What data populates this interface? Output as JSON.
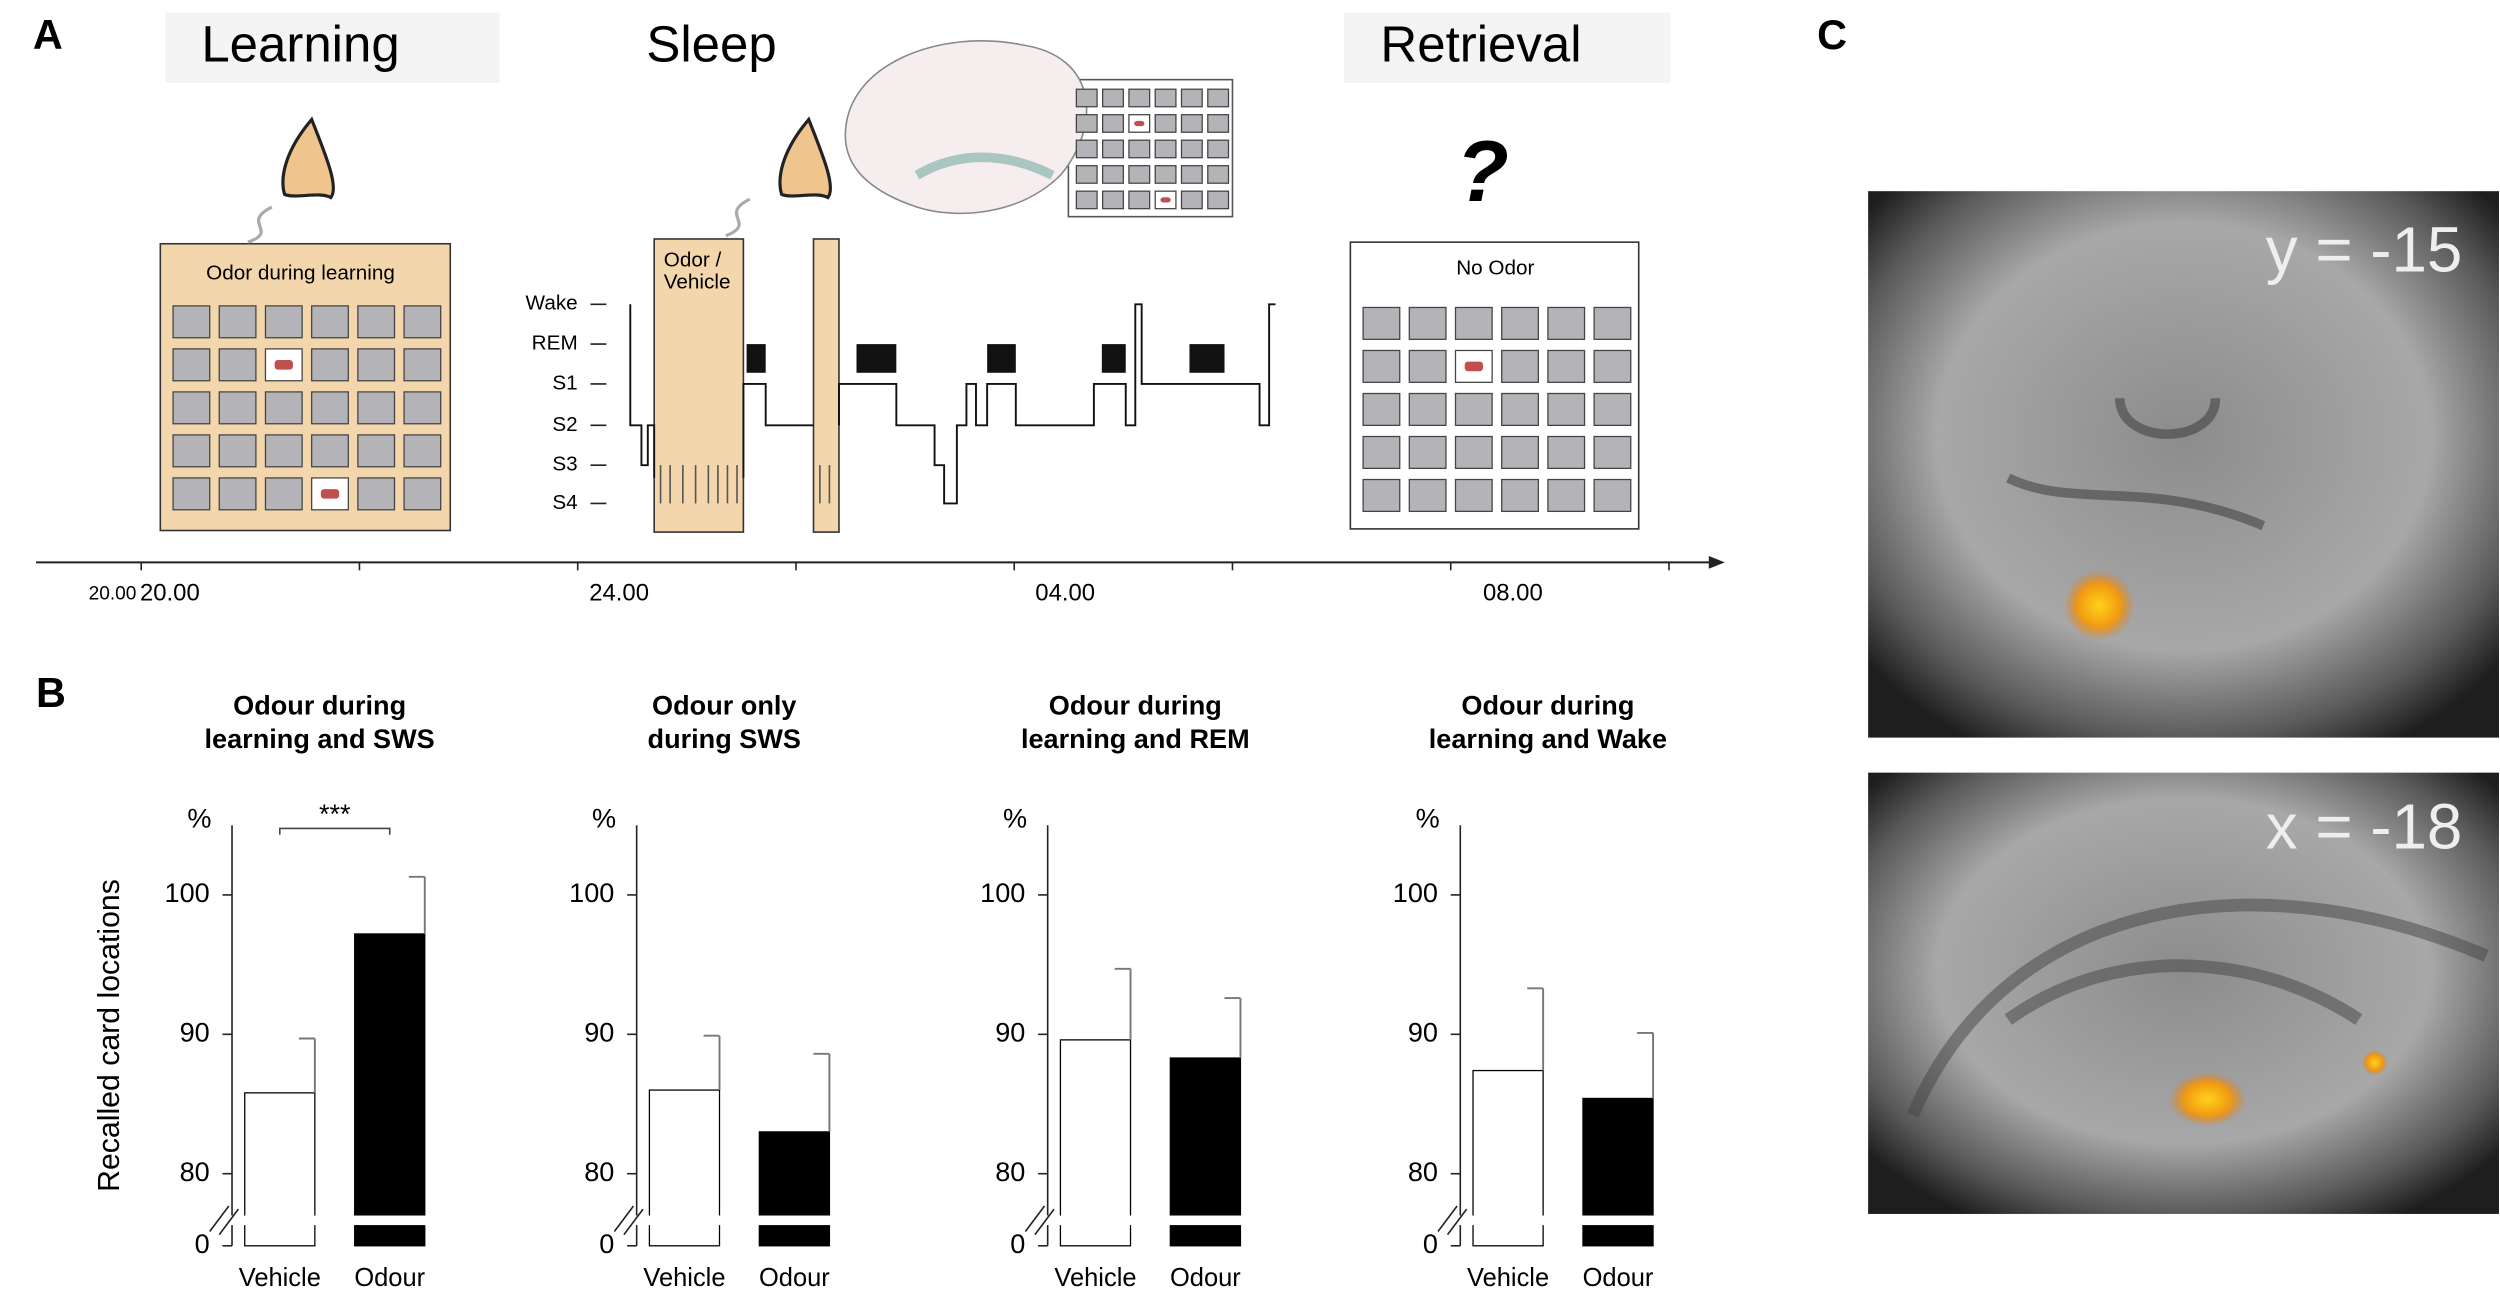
{
  "panel_a": {
    "label": "A",
    "phases": [
      "Learning",
      "Sleep",
      "Retrieval"
    ],
    "box_learning": "Odor during learning",
    "box_sleep": "Odor / Vehicle",
    "box_retrieval": "No Odor",
    "stages": [
      "Wake",
      "REM",
      "S1",
      "S2",
      "S3",
      "S4"
    ],
    "times": [
      "20.00",
      "20.00",
      "24.00",
      "04.00",
      "08.00"
    ]
  },
  "panel_b_label": "B",
  "chart_data": [
    {
      "type": "bar",
      "title": [
        "Odour during",
        "learning and SWS"
      ],
      "y_label": "Recalled card locations",
      "unit_label": "%",
      "categories": [
        "Vehicle",
        "Odour"
      ],
      "values": [
        85.8,
        97.2
      ],
      "errors": [
        3.9,
        4.1
      ],
      "colors": [
        "#ffffff",
        "#000000"
      ],
      "ylim": [
        0,
        105
      ],
      "yticks": [
        0,
        80,
        90,
        100
      ],
      "axis_break": [
        0,
        77
      ],
      "annotation": "***"
    },
    {
      "type": "bar",
      "title": [
        "Odour only",
        "during SWS"
      ],
      "unit_label": "%",
      "categories": [
        "Vehicle",
        "Odour"
      ],
      "values": [
        86.0,
        83.0
      ],
      "errors": [
        3.9,
        5.6
      ],
      "colors": [
        "#ffffff",
        "#000000"
      ],
      "ylim": [
        0,
        105
      ],
      "yticks": [
        0,
        80,
        90,
        100
      ],
      "axis_break": [
        0,
        77
      ]
    },
    {
      "type": "bar",
      "title": [
        "Odour during",
        "learning and REM"
      ],
      "unit_label": "%",
      "categories": [
        "Vehicle",
        "Odour"
      ],
      "values": [
        89.6,
        88.3
      ],
      "errors": [
        5.1,
        4.3
      ],
      "colors": [
        "#ffffff",
        "#000000"
      ],
      "ylim": [
        0,
        105
      ],
      "yticks": [
        0,
        80,
        90,
        100
      ],
      "axis_break": [
        0,
        77
      ]
    },
    {
      "type": "bar",
      "title": [
        "Odour during",
        "learning and Wake"
      ],
      "unit_label": "%",
      "categories": [
        "Vehicle",
        "Odour"
      ],
      "values": [
        87.4,
        85.4
      ],
      "errors": [
        5.9,
        4.7
      ],
      "colors": [
        "#ffffff",
        "#000000"
      ],
      "ylim": [
        0,
        105
      ],
      "yticks": [
        0,
        80,
        90,
        100
      ],
      "axis_break": [
        0,
        77
      ]
    }
  ],
  "panel_c": {
    "label": "C",
    "slices": [
      "y = -15",
      "x = -18"
    ]
  }
}
